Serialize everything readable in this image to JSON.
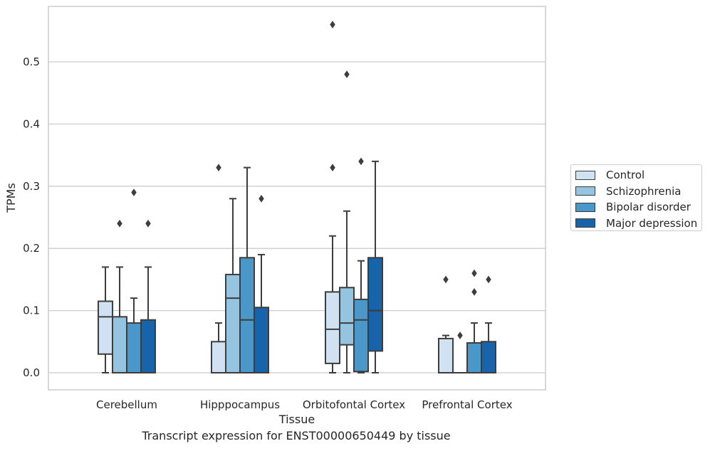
{
  "chart_data": {
    "type": "boxplot",
    "title": "",
    "caption": "Transcript expression for ENST00000650449 by tissue",
    "xlabel": "Tissue",
    "ylabel": "TPMs",
    "ylim": [
      -0.027,
      0.59
    ],
    "yticks": [
      0.0,
      0.1,
      0.2,
      0.3,
      0.4,
      0.5
    ],
    "ytick_labels": [
      "0.0",
      "0.1",
      "0.2",
      "0.3",
      "0.4",
      "0.5"
    ],
    "grid": "horizontal",
    "legend_position": "right",
    "categories": [
      "Cerebellum",
      "Hipppocampus",
      "Orbitofontal Cortex",
      "Prefrontal Cortex"
    ],
    "series": [
      {
        "name": "Control",
        "color": "#d0e1f2",
        "boxes": [
          {
            "whislo": 0.0,
            "q1": 0.03,
            "med": 0.09,
            "q3": 0.115,
            "whishi": 0.17,
            "fliers": []
          },
          {
            "whislo": 0.0,
            "q1": 0.0,
            "med": 0.0,
            "q3": 0.05,
            "whishi": 0.08,
            "fliers": [
              0.33
            ]
          },
          {
            "whislo": 0.0,
            "q1": 0.015,
            "med": 0.07,
            "q3": 0.13,
            "whishi": 0.22,
            "fliers": [
              0.33,
              0.56
            ]
          },
          {
            "whislo": 0.0,
            "q1": 0.0,
            "med": 0.0,
            "q3": 0.055,
            "whishi": 0.06,
            "fliers": [
              0.15
            ]
          }
        ]
      },
      {
        "name": "Schizophrenia",
        "color": "#94c4df",
        "boxes": [
          {
            "whislo": 0.0,
            "q1": 0.0,
            "med": 0.0,
            "q3": 0.09,
            "whishi": 0.17,
            "fliers": [
              0.24
            ]
          },
          {
            "whislo": 0.0,
            "q1": 0.0,
            "med": 0.12,
            "q3": 0.158,
            "whishi": 0.28,
            "fliers": []
          },
          {
            "whislo": 0.0,
            "q1": 0.045,
            "med": 0.08,
            "q3": 0.137,
            "whishi": 0.26,
            "fliers": [
              0.48
            ]
          },
          {
            "whislo": 0.0,
            "q1": 0.0,
            "med": 0.0,
            "q3": 0.0,
            "whishi": 0.0,
            "fliers": [
              0.06
            ]
          }
        ]
      },
      {
        "name": "Bipolar disorder",
        "color": "#4a98c9",
        "boxes": [
          {
            "whislo": 0.0,
            "q1": 0.0,
            "med": 0.0,
            "q3": 0.08,
            "whishi": 0.12,
            "fliers": [
              0.29
            ]
          },
          {
            "whislo": 0.0,
            "q1": 0.0,
            "med": 0.085,
            "q3": 0.185,
            "whishi": 0.33,
            "fliers": []
          },
          {
            "whislo": 0.0,
            "q1": 0.002,
            "med": 0.085,
            "q3": 0.118,
            "whishi": 0.18,
            "fliers": [
              0.34
            ]
          },
          {
            "whislo": 0.0,
            "q1": 0.0,
            "med": 0.0,
            "q3": 0.048,
            "whishi": 0.08,
            "fliers": [
              0.13,
              0.16
            ]
          }
        ]
      },
      {
        "name": "Major depression",
        "color": "#1764ab",
        "boxes": [
          {
            "whislo": 0.0,
            "q1": 0.0,
            "med": 0.0,
            "q3": 0.085,
            "whishi": 0.17,
            "fliers": [
              0.24
            ]
          },
          {
            "whislo": 0.0,
            "q1": 0.0,
            "med": 0.0,
            "q3": 0.105,
            "whishi": 0.19,
            "fliers": [
              0.28
            ]
          },
          {
            "whislo": 0.0,
            "q1": 0.035,
            "med": 0.1,
            "q3": 0.185,
            "whishi": 0.34,
            "fliers": []
          },
          {
            "whislo": 0.0,
            "q1": 0.0,
            "med": 0.0,
            "q3": 0.05,
            "whishi": 0.08,
            "fliers": [
              0.15
            ]
          }
        ]
      }
    ],
    "colors": {
      "grid": "#cccccc",
      "frame": "#cccccc",
      "line": "#3d3d3d"
    }
  }
}
